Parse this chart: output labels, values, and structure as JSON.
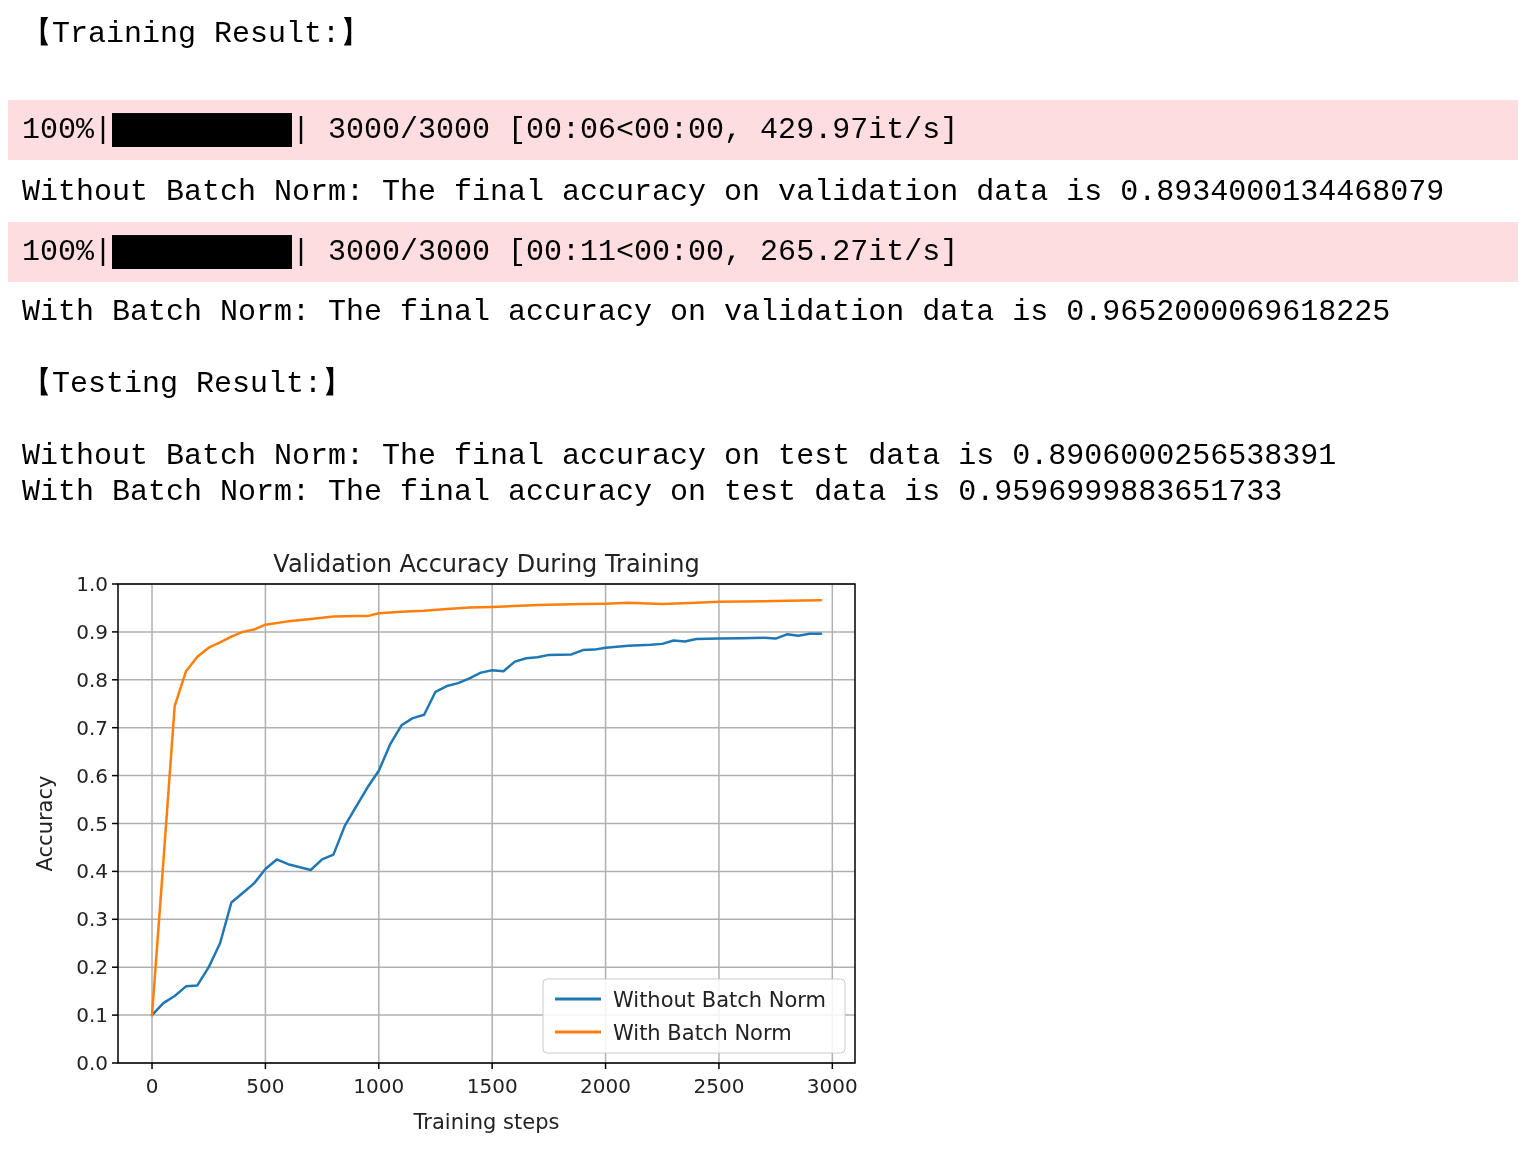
{
  "chart_data": {
    "type": "line",
    "title": "Validation Accuracy During Training",
    "xlabel": "Training steps",
    "ylabel": "Accuracy",
    "xlim": [
      -150,
      3100
    ],
    "xticks": [
      0,
      500,
      1000,
      1500,
      2000,
      2500,
      3000
    ],
    "ylim": [
      0,
      1
    ],
    "yticks": [
      {
        "value": 0,
        "label": "0.0"
      },
      0.1,
      0.2,
      0.3,
      0.4,
      0.5,
      0.6,
      0.7,
      0.8,
      0.9,
      {
        "value": 1,
        "label": "1.0"
      }
    ],
    "grid": true,
    "legend": "bottom right",
    "marker": "none",
    "line_style": "solid",
    "series": [
      {
        "name": "Without Batch Norm",
        "color": "#1f77b4",
        "x": [
          0,
          50,
          100,
          150,
          200,
          250,
          300,
          350,
          400,
          450,
          500,
          550,
          600,
          700,
          750,
          800,
          850,
          900,
          950,
          1000,
          1050,
          1100,
          1150,
          1200,
          1250,
          1300,
          1350,
          1400,
          1450,
          1500,
          1550,
          1600,
          1650,
          1700,
          1750,
          1850,
          1900,
          1950,
          2000,
          2100,
          2200,
          2250,
          2300,
          2350,
          2400,
          2500,
          2600,
          2700,
          2750,
          2800,
          2850,
          2900,
          2950
        ],
        "values": [
          0.1,
          0.125,
          0.14,
          0.16,
          0.162,
          0.2,
          0.25,
          0.335,
          0.355,
          0.375,
          0.405,
          0.425,
          0.415,
          0.403,
          0.425,
          0.435,
          0.495,
          0.535,
          0.575,
          0.61,
          0.665,
          0.705,
          0.72,
          0.727,
          0.775,
          0.787,
          0.793,
          0.803,
          0.815,
          0.82,
          0.818,
          0.838,
          0.845,
          0.847,
          0.852,
          0.853,
          0.862,
          0.863,
          0.867,
          0.871,
          0.873,
          0.875,
          0.882,
          0.88,
          0.885,
          0.886,
          0.887,
          0.888,
          0.886,
          0.895,
          0.892,
          0.896,
          0.896
        ]
      },
      {
        "name": "With Batch Norm",
        "color": "#ff7f0e",
        "x": [
          0,
          50,
          100,
          150,
          200,
          250,
          300,
          350,
          400,
          450,
          500,
          600,
          700,
          800,
          900,
          950,
          1000,
          1100,
          1200,
          1300,
          1400,
          1500,
          1700,
          1900,
          2000,
          2100,
          2250,
          2400,
          2500,
          2700,
          2800,
          2950
        ],
        "values": [
          0.1,
          0.42,
          0.745,
          0.818,
          0.848,
          0.867,
          0.878,
          0.89,
          0.9,
          0.905,
          0.915,
          0.922,
          0.927,
          0.932,
          0.933,
          0.933,
          0.939,
          0.942,
          0.944,
          0.948,
          0.951,
          0.952,
          0.956,
          0.958,
          0.959,
          0.961,
          0.958,
          0.961,
          0.963,
          0.964,
          0.965,
          0.966
        ]
      }
    ],
    "annotations": [
      "【Training Result:】",
      "100%|██████████| 3000/3000 [00:06<00:00, 429.97it/s]",
      "Without Batch Norm: The final accuracy on validation data is 0.8934000134468079",
      "100%|██████████| 3000/3000 [00:11<00:00, 265.27it/s]",
      "With Batch Norm: The final accuracy on validation data is 0.9652000069618225",
      "【Testing Result:】",
      "Without Batch Norm: The final accuracy on test data is 0.8906000256538391",
      "With Batch Norm: The final accuracy on test data is 0.9596999883651733"
    ]
  }
}
